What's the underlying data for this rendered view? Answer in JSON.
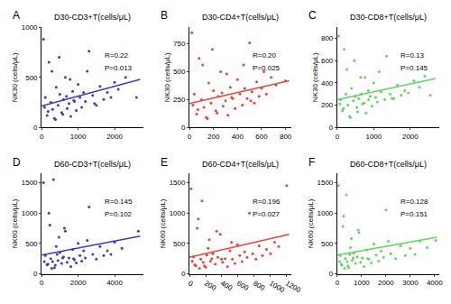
{
  "chart_data": [
    {
      "type": "scatter",
      "panel": "A",
      "title": "D30-CD3+T(cells/μL)",
      "y_label": "NK30 (cells/μL)",
      "color": "#3b3bc8",
      "x": [
        50,
        100,
        150,
        200,
        250,
        300,
        350,
        400,
        450,
        500,
        550,
        600,
        650,
        700,
        750,
        800,
        850,
        900,
        950,
        1000,
        1050,
        1100,
        1150,
        1200,
        1300,
        1400,
        1500,
        1600,
        1700,
        1800,
        1900,
        2000,
        2100,
        2600,
        80,
        180,
        280,
        380,
        480,
        580,
        680,
        780,
        880,
        1250,
        1450,
        2300
      ],
      "y": [
        880,
        300,
        120,
        650,
        250,
        180,
        90,
        400,
        220,
        330,
        150,
        280,
        500,
        190,
        240,
        110,
        360,
        260,
        170,
        430,
        300,
        200,
        350,
        260,
        760,
        320,
        220,
        410,
        280,
        350,
        300,
        450,
        380,
        300,
        200,
        160,
        560,
        80,
        700,
        130,
        310,
        480,
        270,
        560,
        240,
        500
      ],
      "fit": {
        "x": [
          0,
          2700
        ],
        "y": [
          215,
          480
        ]
      },
      "annotations": [
        "R=0.22",
        "P=0.013"
      ],
      "xlim": [
        0,
        2800
      ],
      "ylim": [
        0,
        1000
      ],
      "xticks": [
        0,
        1000,
        2000
      ],
      "yticks": [
        0,
        500,
        1000
      ]
    },
    {
      "type": "scatter",
      "panel": "B",
      "title": "D30-CD4+T(cells/μL)",
      "y_label": "NK30 (cells/μL)",
      "color": "#e8443a",
      "x": [
        20,
        40,
        60,
        80,
        100,
        120,
        140,
        160,
        180,
        200,
        220,
        240,
        260,
        280,
        300,
        320,
        340,
        360,
        380,
        400,
        420,
        440,
        460,
        480,
        500,
        520,
        540,
        560,
        580,
        600,
        640,
        680,
        720,
        800,
        30,
        70,
        110,
        150,
        190,
        230,
        270,
        310,
        350,
        450,
        510,
        620
      ],
      "y": [
        850,
        300,
        120,
        620,
        250,
        180,
        90,
        400,
        220,
        330,
        150,
        280,
        500,
        190,
        240,
        110,
        360,
        260,
        170,
        430,
        300,
        200,
        350,
        260,
        760,
        320,
        220,
        410,
        280,
        350,
        300,
        450,
        380,
        420,
        200,
        160,
        560,
        80,
        700,
        130,
        310,
        480,
        270,
        560,
        240,
        500
      ],
      "fit": {
        "x": [
          0,
          830
        ],
        "y": [
          215,
          420
        ]
      },
      "annotations": [
        "R=0.20",
        "P=0.025"
      ],
      "xlim": [
        0,
        850
      ],
      "ylim": [
        0,
        900
      ],
      "xticks": [
        0,
        200,
        400,
        600,
        800
      ],
      "yticks": [
        0,
        250,
        500,
        750
      ]
    },
    {
      "type": "scatter",
      "panel": "C",
      "title": "D30-CD8+T(cells/μL)",
      "y_label": "NK30 (cells/μL)",
      "color": "#5fd65f",
      "x": [
        40,
        90,
        140,
        190,
        240,
        290,
        340,
        390,
        440,
        490,
        540,
        590,
        640,
        690,
        740,
        790,
        850,
        900,
        950,
        1000,
        1050,
        1100,
        1200,
        1300,
        1350,
        1450,
        1550,
        1650,
        1750,
        1850,
        1950,
        2100,
        2250,
        2550,
        70,
        170,
        260,
        360,
        470,
        560,
        660,
        760,
        860,
        1150,
        1500,
        2400
      ],
      "y": [
        820,
        250,
        150,
        700,
        300,
        200,
        100,
        350,
        240,
        280,
        180,
        260,
        450,
        210,
        220,
        130,
        330,
        280,
        190,
        400,
        270,
        230,
        320,
        250,
        640,
        300,
        260,
        380,
        290,
        330,
        310,
        420,
        360,
        290,
        210,
        170,
        520,
        90,
        600,
        140,
        300,
        450,
        250,
        500,
        260,
        460
      ],
      "fit": {
        "x": [
          0,
          2700
        ],
        "y": [
          250,
          440
        ]
      },
      "annotations": [
        "R=0.13",
        "P=0.145"
      ],
      "xlim": [
        0,
        2800
      ],
      "ylim": [
        0,
        900
      ],
      "xticks": [
        0,
        1000,
        2000
      ],
      "yticks": [
        0,
        200,
        400,
        600,
        800
      ]
    },
    {
      "type": "scatter",
      "panel": "D",
      "title": "D60-CD3+T(cells/μL)",
      "y_label": "NK60 (cells/μL)",
      "color": "#3b3bc8",
      "x": [
        100,
        200,
        300,
        400,
        500,
        600,
        700,
        800,
        900,
        1000,
        1100,
        1200,
        1300,
        1400,
        1500,
        1600,
        1700,
        1800,
        1900,
        2000,
        2100,
        2200,
        2300,
        2400,
        2600,
        2800,
        3000,
        3200,
        3400,
        3600,
        3800,
        4000,
        4400,
        5300,
        150,
        350,
        450,
        550,
        650,
        750,
        850,
        950,
        1150,
        1250,
        1750,
        2500
      ],
      "y": [
        1500,
        300,
        150,
        1000,
        250,
        200,
        100,
        450,
        220,
        350,
        170,
        280,
        700,
        190,
        260,
        120,
        400,
        230,
        180,
        500,
        300,
        210,
        380,
        260,
        1100,
        320,
        240,
        450,
        300,
        380,
        320,
        520,
        420,
        700,
        200,
        160,
        800,
        90,
        1550,
        140,
        320,
        600,
        260,
        750,
        250,
        550
      ],
      "fit": {
        "x": [
          0,
          5400
        ],
        "y": [
          310,
          620
        ]
      },
      "annotations": [
        "R=0.145",
        "P=0.102"
      ],
      "xlim": [
        0,
        5600
      ],
      "ylim": [
        0,
        1650
      ],
      "xticks": [
        0,
        2000,
        4000
      ],
      "yticks": [
        0,
        500,
        1000,
        1500
      ]
    },
    {
      "type": "scatter",
      "panel": "E",
      "title": "D60-CD4+T(cells/μL)",
      "y_label": "NK60 (cells/μL)",
      "color": "#e8443a",
      "x": [
        20,
        50,
        80,
        110,
        140,
        170,
        200,
        230,
        260,
        290,
        320,
        350,
        380,
        410,
        440,
        470,
        500,
        530,
        560,
        590,
        620,
        650,
        680,
        710,
        740,
        780,
        820,
        860,
        900,
        950,
        1000,
        1050,
        1100,
        1200,
        35,
        65,
        95,
        125,
        155,
        185,
        215,
        245,
        275,
        335,
        395,
        520
      ],
      "y": [
        1400,
        280,
        130,
        900,
        240,
        190,
        110,
        420,
        210,
        330,
        160,
        270,
        650,
        190,
        250,
        120,
        380,
        240,
        170,
        480,
        300,
        200,
        360,
        270,
        1000,
        330,
        240,
        460,
        300,
        400,
        330,
        520,
        450,
        1450,
        210,
        150,
        750,
        90,
        1200,
        130,
        310,
        560,
        250,
        700,
        240,
        520
      ],
      "fit": {
        "x": [
          0,
          1230
        ],
        "y": [
          270,
          650
        ]
      },
      "annotations": [
        "R=0.196",
        "P=0.027"
      ],
      "xlim": [
        0,
        1260
      ],
      "ylim": [
        0,
        1650
      ],
      "xticks": [
        0,
        200,
        400,
        600,
        800,
        1000,
        1200
      ],
      "yticks": [
        0,
        500,
        1000,
        1500
      ]
    },
    {
      "type": "scatter",
      "panel": "F",
      "title": "D60-CD8+T(cells/μL)",
      "y_label": "NK60 (cells/μL)",
      "color": "#5fd65f",
      "x": [
        50,
        120,
        190,
        260,
        330,
        400,
        470,
        540,
        610,
        680,
        750,
        820,
        890,
        960,
        1030,
        1100,
        1200,
        1300,
        1400,
        1500,
        1600,
        1700,
        1800,
        1900,
        2000,
        2200,
        2400,
        2600,
        2800,
        3000,
        3200,
        3400,
        3700,
        4050,
        90,
        160,
        230,
        300,
        370,
        440,
        510,
        580,
        650,
        860,
        1250,
        2100
      ],
      "y": [
        1450,
        300,
        140,
        950,
        250,
        200,
        100,
        430,
        220,
        340,
        170,
        280,
        680,
        190,
        260,
        120,
        390,
        240,
        180,
        490,
        310,
        210,
        370,
        270,
        1050,
        330,
        250,
        460,
        300,
        420,
        320,
        540,
        430,
        550,
        200,
        160,
        780,
        90,
        1300,
        130,
        320,
        580,
        260,
        720,
        250,
        540
      ],
      "fit": {
        "x": [
          0,
          4100
        ],
        "y": [
          310,
          600
        ]
      },
      "annotations": [
        "R=0.128",
        "P=0.151"
      ],
      "xlim": [
        0,
        4200
      ],
      "ylim": [
        0,
        1650
      ],
      "xticks": [
        0,
        1000,
        2000,
        3000,
        4000
      ],
      "yticks": [
        0,
        500,
        1000,
        1500
      ]
    }
  ]
}
